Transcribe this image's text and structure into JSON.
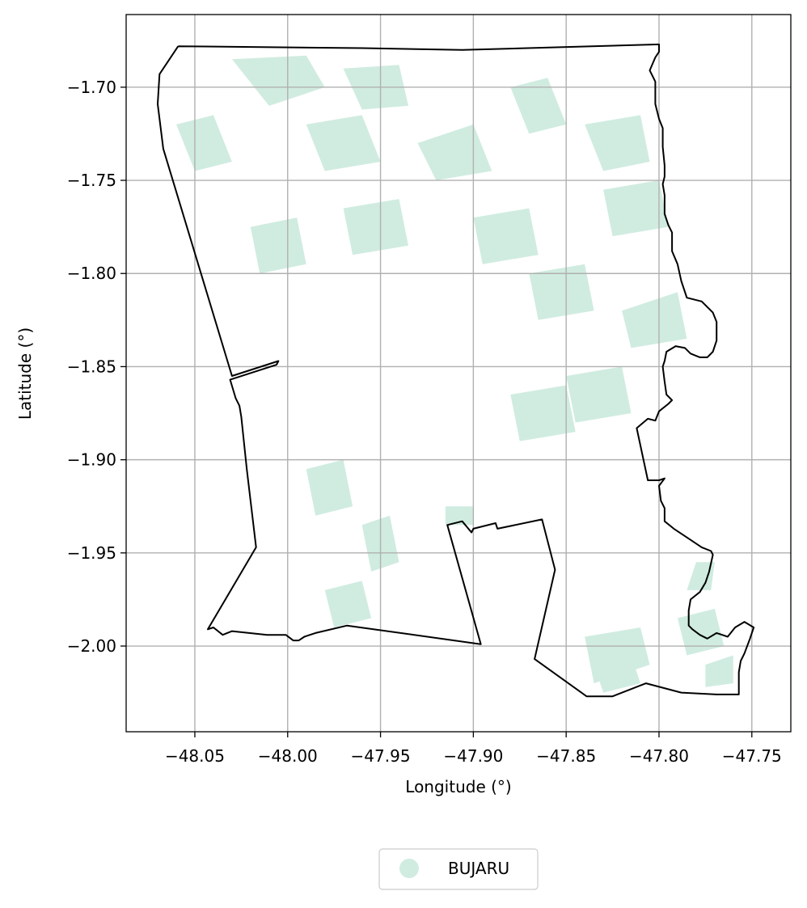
{
  "chart_data": {
    "type": "map",
    "xlabel": "Longitude (°)",
    "ylabel": "Latitude (°)",
    "xlim": [
      -48.087,
      -47.729
    ],
    "ylim": [
      -2.046,
      -1.661
    ],
    "grid": true,
    "x_ticks": [
      -48.05,
      -48.0,
      -47.95,
      -47.9,
      -47.85,
      -47.8,
      -47.75
    ],
    "x_tick_labels": [
      "−48.05",
      "−48.00",
      "−47.95",
      "−47.90",
      "−47.85",
      "−47.80",
      "−47.75"
    ],
    "y_ticks": [
      -1.7,
      -1.75,
      -1.8,
      -1.85,
      -1.9,
      -1.95,
      -2.0
    ],
    "y_tick_labels": [
      "−1.70",
      "−1.75",
      "−1.80",
      "−1.85",
      "−1.90",
      "−1.95",
      "−2.00"
    ],
    "legend": {
      "placement": "bottom-center",
      "entries": [
        {
          "label": "BUJARU",
          "color": "#d0ece0",
          "marker": "circle"
        }
      ]
    },
    "colors": {
      "fill": "#d0ece0",
      "boundary": "#000000",
      "grid": "#b0b0b0"
    },
    "boundary_lonlat": [
      [
        -48.059,
        -1.678
      ],
      [
        -47.96,
        -1.679
      ],
      [
        -47.906,
        -1.68
      ],
      [
        -47.8,
        -1.677
      ],
      [
        -47.8,
        -1.681
      ],
      [
        -47.802,
        -1.684
      ],
      [
        -47.805,
        -1.691
      ],
      [
        -47.802,
        -1.697
      ],
      [
        -47.802,
        -1.709
      ],
      [
        -47.8,
        -1.717
      ],
      [
        -47.798,
        -1.722
      ],
      [
        -47.798,
        -1.732
      ],
      [
        -47.797,
        -1.742
      ],
      [
        -47.797,
        -1.748
      ],
      [
        -47.798,
        -1.752
      ],
      [
        -47.797,
        -1.758
      ],
      [
        -47.797,
        -1.768
      ],
      [
        -47.795,
        -1.774
      ],
      [
        -47.793,
        -1.778
      ],
      [
        -47.793,
        -1.788
      ],
      [
        -47.79,
        -1.795
      ],
      [
        -47.788,
        -1.804
      ],
      [
        -47.785,
        -1.813
      ],
      [
        -47.777,
        -1.815
      ],
      [
        -47.771,
        -1.821
      ],
      [
        -47.769,
        -1.826
      ],
      [
        -47.769,
        -1.836
      ],
      [
        -47.771,
        -1.842
      ],
      [
        -47.774,
        -1.845
      ],
      [
        -47.778,
        -1.845
      ],
      [
        -47.783,
        -1.843
      ],
      [
        -47.786,
        -1.84
      ],
      [
        -47.791,
        -1.839
      ],
      [
        -47.796,
        -1.842
      ],
      [
        -47.797,
        -1.847
      ],
      [
        -47.798,
        -1.85
      ],
      [
        -47.797,
        -1.858
      ],
      [
        -47.796,
        -1.865
      ],
      [
        -47.793,
        -1.868
      ],
      [
        -47.795,
        -1.87
      ],
      [
        -47.8,
        -1.874
      ],
      [
        -47.802,
        -1.879
      ],
      [
        -47.806,
        -1.878
      ],
      [
        -47.812,
        -1.883
      ],
      [
        -47.806,
        -1.911
      ],
      [
        -47.8,
        -1.911
      ],
      [
        -47.797,
        -1.91
      ],
      [
        -47.8,
        -1.914
      ],
      [
        -47.799,
        -1.922
      ],
      [
        -47.797,
        -1.926
      ],
      [
        -47.797,
        -1.933
      ],
      [
        -47.792,
        -1.937
      ],
      [
        -47.783,
        -1.943
      ],
      [
        -47.777,
        -1.947
      ],
      [
        -47.772,
        -1.949
      ],
      [
        -47.771,
        -1.951
      ],
      [
        -47.773,
        -1.96
      ],
      [
        -47.775,
        -1.966
      ],
      [
        -47.778,
        -1.971
      ],
      [
        -47.783,
        -1.975
      ],
      [
        -47.784,
        -1.981
      ],
      [
        -47.784,
        -1.989
      ],
      [
        -47.782,
        -1.991
      ],
      [
        -47.778,
        -1.994
      ],
      [
        -47.774,
        -1.996
      ],
      [
        -47.769,
        -1.993
      ],
      [
        -47.763,
        -1.995
      ],
      [
        -47.759,
        -1.99
      ],
      [
        -47.754,
        -1.987
      ],
      [
        -47.749,
        -1.99
      ],
      [
        -47.751,
        -1.996
      ],
      [
        -47.754,
        -2.004
      ],
      [
        -47.756,
        -2.008
      ],
      [
        -47.757,
        -2.014
      ],
      [
        -47.757,
        -2.026
      ],
      [
        -47.769,
        -2.026
      ],
      [
        -47.788,
        -2.025
      ],
      [
        -47.807,
        -2.02
      ],
      [
        -47.825,
        -2.027
      ],
      [
        -47.839,
        -2.027
      ],
      [
        -47.867,
        -2.007
      ],
      [
        -47.856,
        -1.959
      ],
      [
        -47.863,
        -1.932
      ],
      [
        -47.887,
        -1.937
      ],
      [
        -47.888,
        -1.934
      ],
      [
        -47.9,
        -1.937
      ],
      [
        -47.901,
        -1.939
      ],
      [
        -47.906,
        -1.933
      ],
      [
        -47.914,
        -1.935
      ],
      [
        -47.896,
        -1.999
      ],
      [
        -47.968,
        -1.989
      ],
      [
        -47.985,
        -1.993
      ],
      [
        -47.991,
        -1.995
      ],
      [
        -47.994,
        -1.997
      ],
      [
        -47.997,
        -1.997
      ],
      [
        -48.001,
        -1.994
      ],
      [
        -48.011,
        -1.994
      ],
      [
        -48.03,
        -1.992
      ],
      [
        -48.035,
        -1.994
      ],
      [
        -48.04,
        -1.99
      ],
      [
        -48.043,
        -1.991
      ],
      [
        -48.017,
        -1.947
      ],
      [
        -48.022,
        -1.905
      ],
      [
        -48.025,
        -1.877
      ],
      [
        -48.026,
        -1.871
      ],
      [
        -48.028,
        -1.867
      ],
      [
        -48.031,
        -1.857
      ],
      [
        -48.006,
        -1.849
      ],
      [
        -48.005,
        -1.847
      ],
      [
        -48.03,
        -1.855
      ],
      [
        -48.067,
        -1.733
      ],
      [
        -48.07,
        -1.709
      ],
      [
        -48.069,
        -1.693
      ],
      [
        -48.059,
        -1.678
      ]
    ],
    "zone_patches_lonlat": [
      [
        [
          -48.06,
          -1.72
        ],
        [
          -48.04,
          -1.715
        ],
        [
          -48.03,
          -1.74
        ],
        [
          -48.05,
          -1.745
        ]
      ],
      [
        [
          -48.03,
          -1.685
        ],
        [
          -47.99,
          -1.683
        ],
        [
          -47.98,
          -1.7
        ],
        [
          -48.01,
          -1.71
        ]
      ],
      [
        [
          -47.99,
          -1.72
        ],
        [
          -47.96,
          -1.715
        ],
        [
          -47.95,
          -1.74
        ],
        [
          -47.98,
          -1.745
        ]
      ],
      [
        [
          -47.97,
          -1.69
        ],
        [
          -47.94,
          -1.688
        ],
        [
          -47.935,
          -1.71
        ],
        [
          -47.96,
          -1.712
        ]
      ],
      [
        [
          -47.93,
          -1.73
        ],
        [
          -47.9,
          -1.72
        ],
        [
          -47.89,
          -1.745
        ],
        [
          -47.92,
          -1.75
        ]
      ],
      [
        [
          -47.88,
          -1.7
        ],
        [
          -47.86,
          -1.695
        ],
        [
          -47.85,
          -1.72
        ],
        [
          -47.87,
          -1.725
        ]
      ],
      [
        [
          -47.84,
          -1.72
        ],
        [
          -47.81,
          -1.715
        ],
        [
          -47.805,
          -1.74
        ],
        [
          -47.83,
          -1.745
        ]
      ],
      [
        [
          -47.83,
          -1.755
        ],
        [
          -47.8,
          -1.75
        ],
        [
          -47.795,
          -1.775
        ],
        [
          -47.825,
          -1.78
        ]
      ],
      [
        [
          -47.97,
          -1.765
        ],
        [
          -47.94,
          -1.76
        ],
        [
          -47.935,
          -1.785
        ],
        [
          -47.965,
          -1.79
        ]
      ],
      [
        [
          -48.02,
          -1.775
        ],
        [
          -47.995,
          -1.77
        ],
        [
          -47.99,
          -1.795
        ],
        [
          -48.015,
          -1.8
        ]
      ],
      [
        [
          -47.9,
          -1.77
        ],
        [
          -47.87,
          -1.765
        ],
        [
          -47.865,
          -1.79
        ],
        [
          -47.895,
          -1.795
        ]
      ],
      [
        [
          -47.87,
          -1.8
        ],
        [
          -47.84,
          -1.795
        ],
        [
          -47.835,
          -1.82
        ],
        [
          -47.865,
          -1.825
        ]
      ],
      [
        [
          -47.82,
          -1.82
        ],
        [
          -47.79,
          -1.81
        ],
        [
          -47.785,
          -1.835
        ],
        [
          -47.815,
          -1.84
        ]
      ],
      [
        [
          -47.85,
          -1.855
        ],
        [
          -47.82,
          -1.85
        ],
        [
          -47.815,
          -1.875
        ],
        [
          -47.845,
          -1.88
        ]
      ],
      [
        [
          -47.88,
          -1.865
        ],
        [
          -47.85,
          -1.86
        ],
        [
          -47.845,
          -1.885
        ],
        [
          -47.875,
          -1.89
        ]
      ],
      [
        [
          -47.99,
          -1.905
        ],
        [
          -47.97,
          -1.9
        ],
        [
          -47.965,
          -1.925
        ],
        [
          -47.985,
          -1.93
        ]
      ],
      [
        [
          -47.96,
          -1.935
        ],
        [
          -47.945,
          -1.93
        ],
        [
          -47.94,
          -1.955
        ],
        [
          -47.955,
          -1.96
        ]
      ],
      [
        [
          -47.915,
          -1.925
        ],
        [
          -47.9,
          -1.925
        ],
        [
          -47.9,
          -1.935
        ],
        [
          -47.915,
          -1.935
        ]
      ],
      [
        [
          -47.98,
          -1.97
        ],
        [
          -47.96,
          -1.965
        ],
        [
          -47.955,
          -1.985
        ],
        [
          -47.975,
          -1.99
        ]
      ],
      [
        [
          -47.84,
          -1.995
        ],
        [
          -47.81,
          -1.99
        ],
        [
          -47.805,
          -2.01
        ],
        [
          -47.835,
          -2.02
        ]
      ],
      [
        [
          -47.79,
          -1.985
        ],
        [
          -47.77,
          -1.98
        ],
        [
          -47.765,
          -2.0
        ],
        [
          -47.785,
          -2.005
        ]
      ],
      [
        [
          -47.78,
          -1.955
        ],
        [
          -47.77,
          -1.955
        ],
        [
          -47.772,
          -1.97
        ],
        [
          -47.785,
          -1.97
        ]
      ],
      [
        [
          -47.835,
          -2.01
        ],
        [
          -47.815,
          -2.005
        ],
        [
          -47.81,
          -2.02
        ],
        [
          -47.83,
          -2.025
        ]
      ],
      [
        [
          -47.775,
          -2.01
        ],
        [
          -47.76,
          -2.005
        ],
        [
          -47.76,
          -2.02
        ],
        [
          -47.775,
          -2.022
        ]
      ]
    ]
  }
}
